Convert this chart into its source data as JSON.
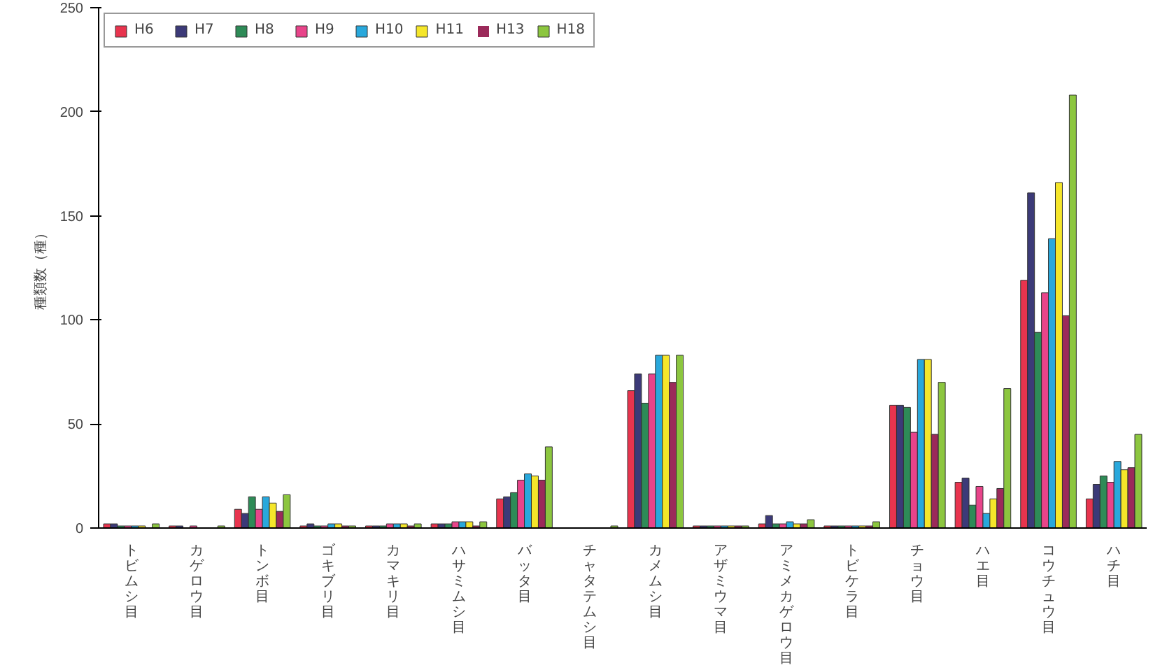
{
  "chart_data": {
    "type": "bar",
    "ylabel": "種類数（種）",
    "categories": [
      "トビムシ目",
      "カゲロウ目",
      "トンボ目",
      "ゴキブリ目",
      "カマキリ目",
      "ハサミムシ目",
      "バッタ目",
      "チャタテムシ目",
      "カメムシ目",
      "アザミウマ目",
      "アミメカゲロウ目",
      "トビケラ目",
      "チョウ目",
      "ハエ目",
      "コウチュウ目",
      "ハチ目"
    ],
    "series": [
      {
        "name": "H6",
        "color": "#e8344e",
        "values": [
          2,
          1,
          9,
          1,
          1,
          2,
          14,
          0,
          66,
          1,
          2,
          1,
          59,
          22,
          119,
          14
        ]
      },
      {
        "name": "H7",
        "color": "#3c3a78",
        "values": [
          2,
          1,
          7,
          2,
          1,
          2,
          15,
          0,
          74,
          1,
          6,
          1,
          59,
          24,
          161,
          21
        ]
      },
      {
        "name": "H8",
        "color": "#2e8b57",
        "values": [
          1,
          0,
          15,
          1,
          1,
          2,
          17,
          0,
          60,
          1,
          2,
          1,
          58,
          11,
          94,
          25
        ]
      },
      {
        "name": "H9",
        "color": "#e8448a",
        "values": [
          1,
          1,
          9,
          1,
          2,
          3,
          23,
          0,
          74,
          1,
          2,
          1,
          46,
          20,
          113,
          22
        ]
      },
      {
        "name": "H10",
        "color": "#29a8dc",
        "values": [
          1,
          0,
          15,
          2,
          2,
          3,
          26,
          0,
          83,
          1,
          3,
          1,
          81,
          7,
          139,
          32
        ]
      },
      {
        "name": "H11",
        "color": "#f5e62a",
        "values": [
          1,
          0,
          12,
          2,
          2,
          3,
          25,
          0,
          83,
          1,
          2,
          1,
          81,
          14,
          166,
          28
        ]
      },
      {
        "name": "H13",
        "color": "#9b2a5a",
        "values": [
          0,
          0,
          8,
          1,
          1,
          1,
          23,
          0,
          70,
          1,
          2,
          1,
          45,
          19,
          102,
          29
        ]
      },
      {
        "name": "H18",
        "color": "#8cc63f",
        "values": [
          2,
          1,
          16,
          1,
          2,
          3,
          39,
          1,
          83,
          1,
          4,
          3,
          70,
          67,
          208,
          45
        ]
      }
    ],
    "ylim": [
      0,
      250
    ],
    "yticks": [
      0,
      50,
      100,
      150,
      200,
      250
    ],
    "grid": false,
    "legend": "top left"
  }
}
